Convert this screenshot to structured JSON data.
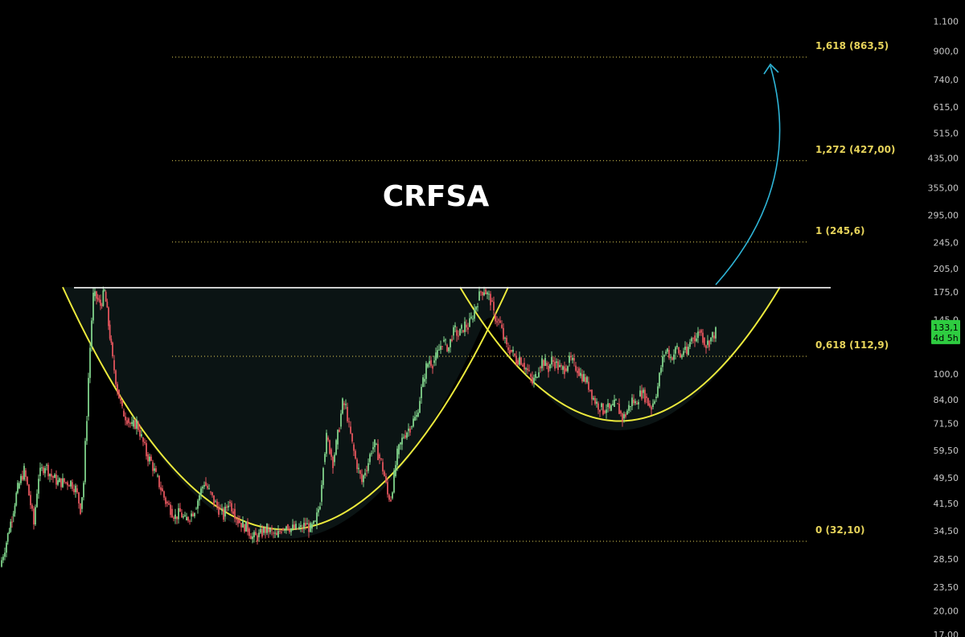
{
  "colors": {
    "background": "#000000",
    "up": "#7fd28a",
    "down": "#e0545c",
    "fib": "#e6d35a",
    "cup": "#ecea3c",
    "resistance": "#ffffff",
    "arrow": "#2eb4d6",
    "fill": "#0b1414",
    "tag_bg": "#2ecc40"
  },
  "chart_data": {
    "type": "candlestick",
    "title": "CRFSA",
    "y_scale": "log",
    "ylim": [
      17.0,
      1100
    ],
    "y_ticks": [
      "1.100",
      "900,0",
      "740,0",
      "615,0",
      "515,0",
      "435,00",
      "355,00",
      "295,00",
      "245,0",
      "205,0",
      "175,0",
      "145,0",
      "100,0",
      "84,00",
      "71,50",
      "59,50",
      "49,50",
      "41,50",
      "34,50",
      "28,50",
      "23,50",
      "20,00",
      "17,00"
    ],
    "y_tick_values": [
      1100,
      900,
      740,
      615,
      515,
      435,
      355,
      295,
      245,
      205,
      175,
      145,
      100,
      84,
      71.5,
      59.5,
      49.5,
      41.5,
      34.5,
      28.5,
      23.5,
      20,
      17
    ],
    "fib_levels": [
      {
        "label": "1,618 (863,5)",
        "value": 863.5
      },
      {
        "label": "1,272 (427,00)",
        "value": 427.0
      },
      {
        "label": "1 (245,6)",
        "value": 245.6
      },
      {
        "label": "0,618 (112,9)",
        "value": 112.9
      },
      {
        "label": "0 (32,10)",
        "value": 32.1
      }
    ],
    "resistance": 180.0,
    "last_price": {
      "value": 133.1,
      "label": "133,1",
      "countdown": "4d 5h"
    },
    "price_path": [
      [
        0,
        27
      ],
      [
        8,
        32
      ],
      [
        15,
        38
      ],
      [
        22,
        46
      ],
      [
        30,
        52
      ],
      [
        36,
        44
      ],
      [
        42,
        36
      ],
      [
        48,
        50
      ],
      [
        56,
        54
      ],
      [
        64,
        50
      ],
      [
        72,
        48
      ],
      [
        80,
        48
      ],
      [
        88,
        48
      ],
      [
        94,
        46
      ],
      [
        100,
        40
      ],
      [
        104,
        48
      ],
      [
        108,
        75
      ],
      [
        112,
        120
      ],
      [
        116,
        170
      ],
      [
        120,
        168
      ],
      [
        125,
        160
      ],
      [
        130,
        175
      ],
      [
        135,
        140
      ],
      [
        140,
        110
      ],
      [
        146,
        90
      ],
      [
        152,
        78
      ],
      [
        158,
        74
      ],
      [
        164,
        70
      ],
      [
        170,
        72
      ],
      [
        176,
        65
      ],
      [
        182,
        58
      ],
      [
        188,
        55
      ],
      [
        194,
        50
      ],
      [
        200,
        46
      ],
      [
        206,
        42
      ],
      [
        212,
        40
      ],
      [
        218,
        38
      ],
      [
        224,
        39
      ],
      [
        230,
        37
      ],
      [
        236,
        38
      ],
      [
        242,
        40
      ],
      [
        248,
        44
      ],
      [
        254,
        48
      ],
      [
        260,
        45
      ],
      [
        266,
        42
      ],
      [
        272,
        40
      ],
      [
        278,
        38
      ],
      [
        284,
        42
      ],
      [
        290,
        40
      ],
      [
        296,
        37
      ],
      [
        302,
        36
      ],
      [
        308,
        35
      ],
      [
        314,
        33
      ],
      [
        320,
        33
      ],
      [
        326,
        34
      ],
      [
        332,
        35
      ],
      [
        338,
        34
      ],
      [
        344,
        33
      ],
      [
        350,
        35
      ],
      [
        356,
        36
      ],
      [
        362,
        35
      ],
      [
        368,
        35
      ],
      [
        374,
        35
      ],
      [
        380,
        36
      ],
      [
        386,
        35
      ],
      [
        392,
        36
      ],
      [
        398,
        42
      ],
      [
        402,
        55
      ],
      [
        406,
        65
      ],
      [
        410,
        60
      ],
      [
        414,
        55
      ],
      [
        418,
        62
      ],
      [
        422,
        70
      ],
      [
        426,
        82
      ],
      [
        430,
        80
      ],
      [
        434,
        70
      ],
      [
        438,
        62
      ],
      [
        442,
        56
      ],
      [
        446,
        52
      ],
      [
        450,
        48
      ],
      [
        454,
        52
      ],
      [
        458,
        55
      ],
      [
        462,
        60
      ],
      [
        466,
        62
      ],
      [
        470,
        58
      ],
      [
        474,
        55
      ],
      [
        478,
        50
      ],
      [
        482,
        44
      ],
      [
        486,
        43
      ],
      [
        490,
        50
      ],
      [
        494,
        58
      ],
      [
        498,
        62
      ],
      [
        502,
        66
      ],
      [
        506,
        68
      ],
      [
        510,
        70
      ],
      [
        514,
        73
      ],
      [
        518,
        75
      ],
      [
        522,
        85
      ],
      [
        526,
        95
      ],
      [
        530,
        105
      ],
      [
        534,
        110
      ],
      [
        538,
        108
      ],
      [
        542,
        112
      ],
      [
        546,
        118
      ],
      [
        550,
        125
      ],
      [
        554,
        122
      ],
      [
        558,
        120
      ],
      [
        562,
        130
      ],
      [
        566,
        135
      ],
      [
        570,
        130
      ],
      [
        574,
        135
      ],
      [
        578,
        140
      ],
      [
        582,
        138
      ],
      [
        586,
        145
      ],
      [
        590,
        155
      ],
      [
        594,
        165
      ],
      [
        598,
        175
      ],
      [
        602,
        178
      ],
      [
        606,
        172
      ],
      [
        610,
        165
      ],
      [
        614,
        150
      ],
      [
        618,
        145
      ],
      [
        622,
        140
      ],
      [
        626,
        128
      ],
      [
        630,
        120
      ],
      [
        634,
        118
      ],
      [
        638,
        115
      ],
      [
        642,
        110
      ],
      [
        646,
        112
      ],
      [
        650,
        108
      ],
      [
        654,
        104
      ],
      [
        658,
        100
      ],
      [
        662,
        94
      ],
      [
        666,
        98
      ],
      [
        670,
        105
      ],
      [
        674,
        110
      ],
      [
        678,
        108
      ],
      [
        682,
        104
      ],
      [
        686,
        110
      ],
      [
        690,
        108
      ],
      [
        694,
        105
      ],
      [
        698,
        103
      ],
      [
        702,
        104
      ],
      [
        706,
        108
      ],
      [
        710,
        110
      ],
      [
        714,
        106
      ],
      [
        718,
        104
      ],
      [
        722,
        100
      ],
      [
        726,
        98
      ],
      [
        730,
        95
      ],
      [
        734,
        90
      ],
      [
        738,
        85
      ],
      [
        742,
        82
      ],
      [
        746,
        80
      ],
      [
        750,
        78
      ],
      [
        754,
        80
      ],
      [
        758,
        78
      ],
      [
        762,
        80
      ],
      [
        766,
        82
      ],
      [
        770,
        78
      ],
      [
        774,
        74
      ],
      [
        778,
        76
      ],
      [
        782,
        80
      ],
      [
        786,
        84
      ],
      [
        790,
        82
      ],
      [
        794,
        86
      ],
      [
        798,
        88
      ],
      [
        802,
        86
      ],
      [
        806,
        82
      ],
      [
        810,
        80
      ],
      [
        814,
        85
      ],
      [
        818,
        92
      ],
      [
        822,
        105
      ],
      [
        826,
        115
      ],
      [
        830,
        118
      ],
      [
        834,
        112
      ],
      [
        838,
        115
      ],
      [
        842,
        120
      ],
      [
        846,
        112
      ],
      [
        850,
        118
      ],
      [
        854,
        114
      ],
      [
        858,
        125
      ],
      [
        862,
        130
      ],
      [
        866,
        128
      ],
      [
        870,
        135
      ],
      [
        874,
        128
      ],
      [
        878,
        122
      ],
      [
        882,
        125
      ],
      [
        886,
        130
      ],
      [
        890,
        133
      ]
    ]
  },
  "axis": {
    "price_tag": "133,1",
    "countdown": "4d 5h"
  }
}
